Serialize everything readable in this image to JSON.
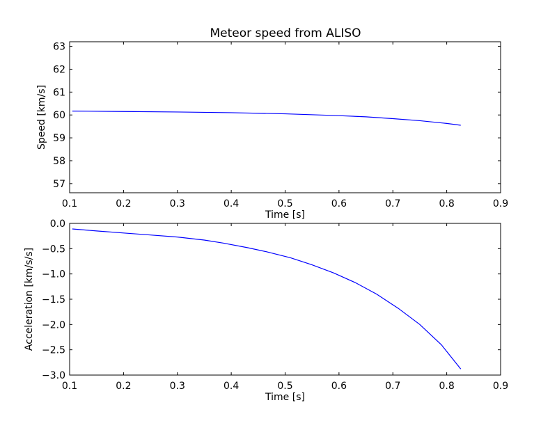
{
  "figure": {
    "title": "Meteor speed from  ALISO"
  },
  "chart_data": [
    {
      "type": "line",
      "title": "Meteor speed from  ALISO",
      "xlabel": "Time [s]",
      "ylabel": "Speed [km/s]",
      "xlim": [
        0.1,
        0.9
      ],
      "ylim": [
        56.6,
        63.2
      ],
      "xticks": [
        0.1,
        0.2,
        0.3,
        0.4,
        0.5,
        0.6,
        0.7,
        0.8,
        0.9
      ],
      "xtick_labels": [
        "0.1",
        "0.2",
        "0.3",
        "0.4",
        "0.5",
        "0.6",
        "0.7",
        "0.8",
        "0.9"
      ],
      "yticks": [
        57,
        58,
        59,
        60,
        61,
        62,
        63
      ],
      "ytick_labels": [
        "57",
        "58",
        "59",
        "60",
        "61",
        "62",
        "63"
      ],
      "grid": false,
      "color": "#0000ff",
      "series": [
        {
          "x": [
            0.105,
            0.2,
            0.3,
            0.4,
            0.5,
            0.6,
            0.65,
            0.7,
            0.75,
            0.8,
            0.826
          ],
          "values": [
            60.17,
            60.15,
            60.13,
            60.1,
            60.05,
            59.97,
            59.92,
            59.84,
            59.75,
            59.63,
            59.55
          ]
        }
      ]
    },
    {
      "type": "line",
      "title": "",
      "xlabel": "Time [s]",
      "ylabel": "Acceleration [km/s/s]",
      "xlim": [
        0.1,
        0.9
      ],
      "ylim": [
        -3.0,
        0.0
      ],
      "xticks": [
        0.1,
        0.2,
        0.3,
        0.4,
        0.5,
        0.6,
        0.7,
        0.8,
        0.9
      ],
      "xtick_labels": [
        "0.1",
        "0.2",
        "0.3",
        "0.4",
        "0.5",
        "0.6",
        "0.7",
        "0.8",
        "0.9"
      ],
      "yticks": [
        -3.0,
        -2.5,
        -2.0,
        -1.5,
        -1.0,
        -0.5,
        0.0
      ],
      "ytick_labels": [
        "−3.0",
        "−2.5",
        "−2.0",
        "−1.5",
        "−1.0",
        "−0.5",
        "0.0"
      ],
      "grid": false,
      "color": "#0000ff",
      "series": [
        {
          "x": [
            0.105,
            0.15,
            0.2,
            0.25,
            0.3,
            0.35,
            0.385,
            0.43,
            0.465,
            0.51,
            0.55,
            0.59,
            0.63,
            0.67,
            0.71,
            0.75,
            0.79,
            0.826
          ],
          "values": [
            -0.11,
            -0.15,
            -0.19,
            -0.23,
            -0.27,
            -0.33,
            -0.39,
            -0.48,
            -0.56,
            -0.68,
            -0.82,
            -0.98,
            -1.17,
            -1.4,
            -1.68,
            -2.0,
            -2.4,
            -2.88
          ]
        }
      ]
    }
  ]
}
